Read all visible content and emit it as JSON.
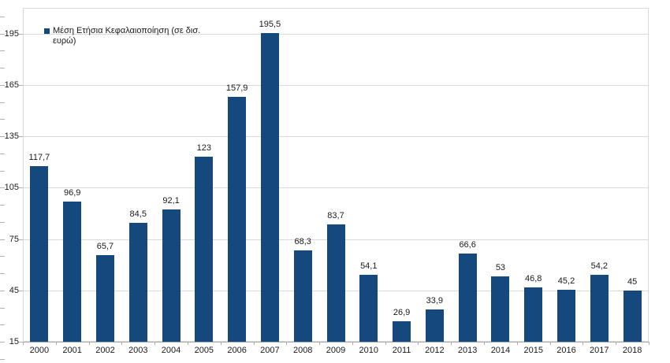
{
  "chart_data": {
    "type": "bar",
    "title": "",
    "xlabel": "",
    "ylabel": "",
    "legend": {
      "label": "Μέση Ετήσια Κεφαλαιοποίηση (σε δισ. ευρώ)",
      "lines": [
        "Μέση Ετήσια Κεφαλαιοποίηση (σε δισ.",
        "ευρώ)"
      ],
      "position": "top-left-inside"
    },
    "categories": [
      "2000",
      "2001",
      "2002",
      "2003",
      "2004",
      "2005",
      "2006",
      "2007",
      "2008",
      "2009",
      "2010",
      "2011",
      "2012",
      "2013",
      "2014",
      "2015",
      "2016",
      "2017",
      "2018"
    ],
    "values": [
      117.7,
      96.9,
      65.7,
      84.5,
      92.1,
      123,
      157.9,
      195.5,
      68.3,
      83.7,
      54.1,
      26.9,
      33.9,
      66.6,
      53,
      46.8,
      45.2,
      54.2,
      45
    ],
    "value_labels": [
      "117,7",
      "96,9",
      "65,7",
      "84,5",
      "92,1",
      "123",
      "157,9",
      "195,5",
      "68,3",
      "83,7",
      "54,1",
      "26,9",
      "33,9",
      "66,6",
      "53",
      "46,8",
      "45,2",
      "54,2",
      "45"
    ],
    "ylim": [
      15,
      210
    ],
    "y_major_ticks": [
      15,
      45,
      75,
      105,
      135,
      165,
      195
    ],
    "y_major_interval": 30,
    "y_minor_interval": 10,
    "grid": "horizontal-major",
    "colors": {
      "bar": "#15497d",
      "grid": "#d9d9d9",
      "axis": "#ababab",
      "tick": "#b0b0b0",
      "text": "#1a1a1a"
    }
  }
}
